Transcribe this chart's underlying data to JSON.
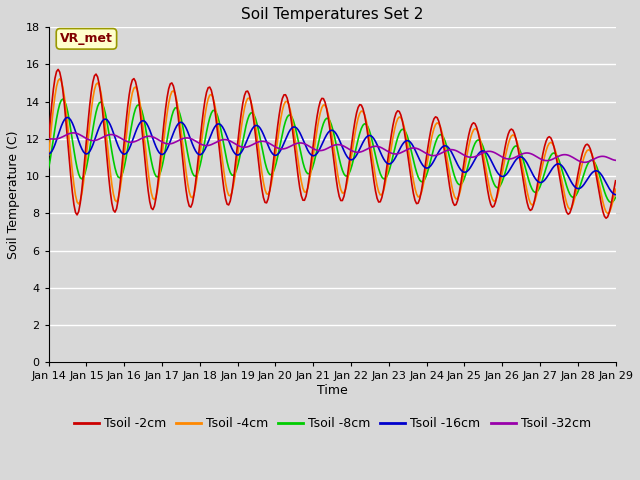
{
  "title": "Soil Temperatures Set 2",
  "xlabel": "Time",
  "ylabel": "Soil Temperature (C)",
  "ylim": [
    0,
    18
  ],
  "yticks": [
    0,
    2,
    4,
    6,
    8,
    10,
    12,
    14,
    16,
    18
  ],
  "x_labels": [
    "Jan 14",
    "Jan 15",
    "Jan 16",
    "Jan 17",
    "Jan 18",
    "Jan 19",
    "Jan 20",
    "Jan 21",
    "Jan 22",
    "Jan 23",
    "Jan 24",
    "Jan 25",
    "Jan 26",
    "Jan 27",
    "Jan 28",
    "Jan 29"
  ],
  "series_colors": [
    "#cc0000",
    "#ff8800",
    "#00cc00",
    "#0000cc",
    "#9900aa"
  ],
  "series_labels": [
    "Tsoil -2cm",
    "Tsoil -4cm",
    "Tsoil -8cm",
    "Tsoil -16cm",
    "Tsoil -32cm"
  ],
  "annotation_text": "VR_met",
  "annotation_box_color": "#ffffcc",
  "annotation_text_color": "#800000",
  "annotation_edge_color": "#999900",
  "bg_color": "#d8d8d8",
  "grid_color": "#ffffff",
  "title_fontsize": 11,
  "axis_label_fontsize": 9,
  "tick_fontsize": 8,
  "legend_fontsize": 9,
  "line_width": 1.2
}
